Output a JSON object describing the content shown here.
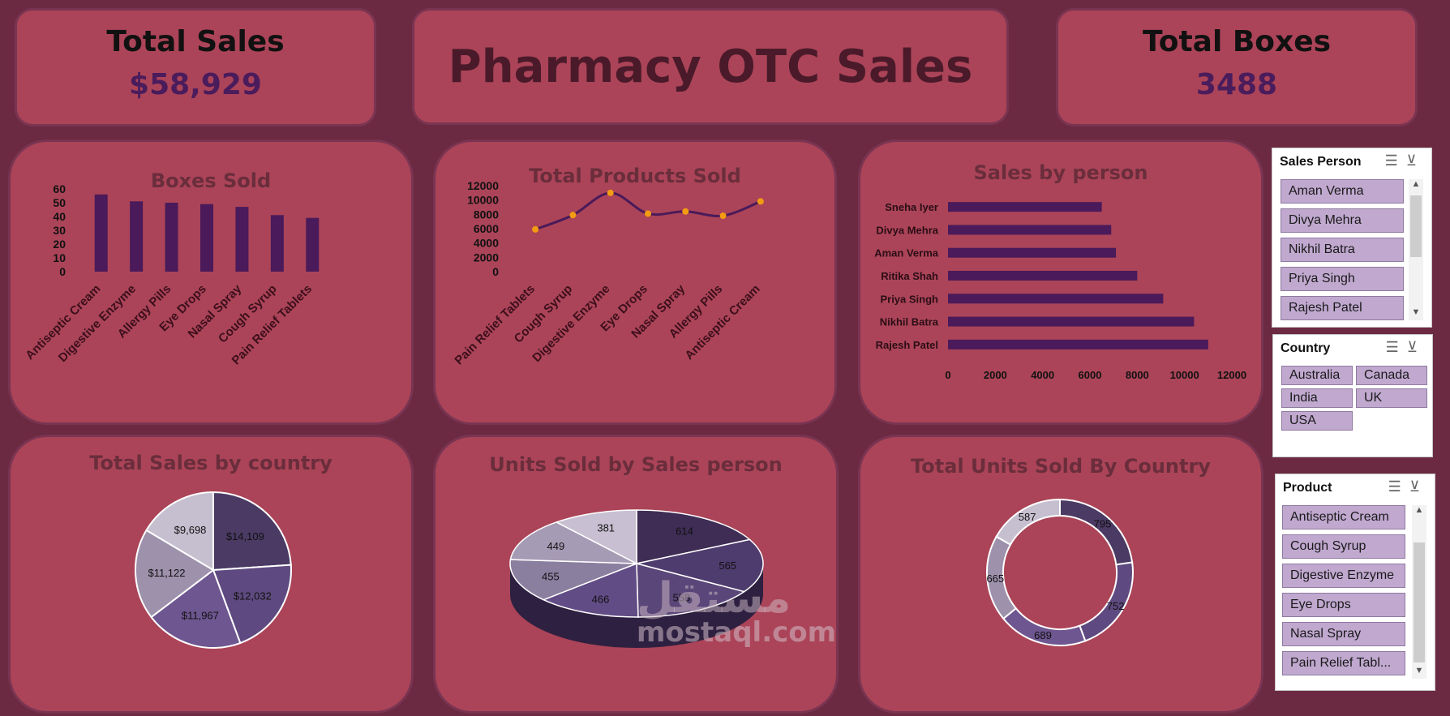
{
  "kpis": {
    "total_sales": {
      "label": "Total Sales",
      "value": "$58,929"
    },
    "total_boxes": {
      "label": "Total Boxes",
      "value": "3488"
    }
  },
  "dashboard_title": "Pharmacy OTC Sales",
  "colors": {
    "background": "#6b2a41",
    "panel": "#ab4458",
    "bar": "#4a1a5a",
    "line_marker": "#f39c12",
    "slicer_item": "#c0a8cf"
  },
  "chart_data": [
    {
      "type": "bar",
      "title": "Boxes Sold",
      "categories": [
        "Antiseptic Cream",
        "Digestive Enzyme",
        "Allergy Pills",
        "Eye Drops",
        "Nasal Spray",
        "Cough Syrup",
        "Pain Relief Tablets"
      ],
      "values": [
        56,
        51,
        50,
        49,
        47,
        41,
        39
      ],
      "ylim": [
        0,
        60
      ],
      "yticks": [
        "0",
        "10",
        "20",
        "30",
        "40",
        "50",
        "60"
      ],
      "grid": false
    },
    {
      "type": "line",
      "title": "Total Products Sold",
      "categories": [
        "Pain Relief Tablets",
        "Cough Syrup",
        "Digestive Enzyme",
        "Eye Drops",
        "Nasal Spray",
        "Allergy Pills",
        "Antiseptic Cream"
      ],
      "values": [
        5900,
        7900,
        11000,
        8100,
        8400,
        7800,
        9800
      ],
      "ylim": [
        0,
        12000
      ],
      "yticks": [
        "0",
        "2000",
        "4000",
        "6000",
        "8000",
        "10000",
        "12000"
      ],
      "grid": false
    },
    {
      "type": "bar",
      "orientation": "horizontal",
      "title": "Sales by person",
      "categories": [
        "Sneha Iyer",
        "Divya Mehra",
        "Aman Verma",
        "Ritika Shah",
        "Priya Singh",
        "Nikhil Batra",
        "Rajesh Patel"
      ],
      "values": [
        6500,
        6900,
        7100,
        8000,
        9100,
        10400,
        11000
      ],
      "xlim": [
        0,
        12000
      ],
      "xticks": [
        "0",
        "2000",
        "4000",
        "6000",
        "8000",
        "10000",
        "12000"
      ],
      "grid": false
    },
    {
      "type": "pie",
      "title": "Total Sales by country",
      "values": [
        14109,
        12032,
        11967,
        11122,
        9698
      ],
      "labels": [
        "$14,109",
        "$12,032",
        "$11,967",
        "$11,122",
        "$9,698"
      ],
      "colors": [
        "#4a3a64",
        "#5e4a80",
        "#6e5690",
        "#9d91ac",
        "#c6bfd0"
      ]
    },
    {
      "type": "pie",
      "title": "Units Sold by Sales person",
      "values": [
        614,
        565,
        558,
        466,
        455,
        449,
        381
      ],
      "labels": [
        "614",
        "565",
        "558",
        "466",
        "455",
        "449",
        "381"
      ],
      "colors": [
        "#3f2d55",
        "#4f3c6e",
        "#5a4678",
        "#624c86",
        "#8b7fa0",
        "#a69bb5",
        "#c8c0d2"
      ]
    },
    {
      "type": "pie",
      "title": "Total Units Sold By Country",
      "donut": true,
      "values": [
        795,
        752,
        689,
        665,
        587
      ],
      "labels": [
        "795",
        "752",
        "689",
        "665",
        "587"
      ],
      "colors": [
        "#4a3a64",
        "#5e4a80",
        "#6e5690",
        "#9d91ac",
        "#c6bfd0"
      ]
    }
  ],
  "slicers": {
    "sales_person": {
      "title": "Sales Person",
      "items": [
        "Aman Verma",
        "Divya Mehra",
        "Nikhil Batra",
        "Priya Singh",
        "Rajesh Patel"
      ]
    },
    "country": {
      "title": "Country",
      "items": [
        "Australia",
        "Canada",
        "India",
        "UK",
        "USA"
      ]
    },
    "product": {
      "title": "Product",
      "items": [
        "Antiseptic Cream",
        "Cough Syrup",
        "Digestive Enzyme",
        "Eye Drops",
        "Nasal Spray",
        "Pain Relief Tabl..."
      ]
    }
  },
  "slicer_tools": {
    "multi_select_icon": "☰",
    "clear_filter_icon": "⊻"
  },
  "watermark": {
    "arabic": "مستقل",
    "text": "mostaql.com"
  }
}
